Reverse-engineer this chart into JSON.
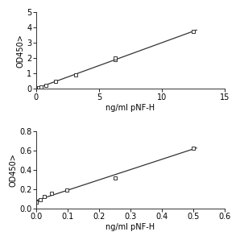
{
  "top": {
    "x": [
      0.0,
      0.195,
      0.39,
      0.78,
      1.56,
      3.13,
      6.25,
      6.25,
      12.5
    ],
    "y": [
      0.04,
      0.08,
      0.12,
      0.22,
      0.48,
      0.92,
      1.88,
      2.0,
      3.72
    ],
    "line_x": [
      0.0,
      12.5
    ],
    "line_y": [
      0.04,
      3.72
    ],
    "xlim": [
      0,
      15
    ],
    "ylim": [
      0,
      5
    ],
    "xticks": [
      0,
      5,
      10,
      15
    ],
    "yticks": [
      0,
      1,
      2,
      3,
      4,
      5
    ],
    "xlabel": "ng/ml pNF-H",
    "ylabel": "OD450>"
  },
  "bottom": {
    "x": [
      0.0,
      0.012,
      0.025,
      0.049,
      0.098,
      0.25,
      0.5
    ],
    "y": [
      0.06,
      0.09,
      0.12,
      0.16,
      0.19,
      0.32,
      0.63
    ],
    "line_x": [
      0.0,
      0.5
    ],
    "line_y": [
      0.06,
      0.63
    ],
    "xlim": [
      0,
      0.6
    ],
    "ylim": [
      0,
      0.8
    ],
    "xticks": [
      0.0,
      0.1,
      0.2,
      0.3,
      0.4,
      0.5,
      0.6
    ],
    "yticks": [
      0.0,
      0.2,
      0.4,
      0.6,
      0.8
    ],
    "xlabel": "ng/ml pNF-H",
    "ylabel": "OD450>"
  },
  "line_color": "#333333",
  "marker_facecolor": "#ffffff",
  "marker_edgecolor": "#333333",
  "bg_color": "#ffffff",
  "font_size": 7,
  "tick_font_size": 7
}
